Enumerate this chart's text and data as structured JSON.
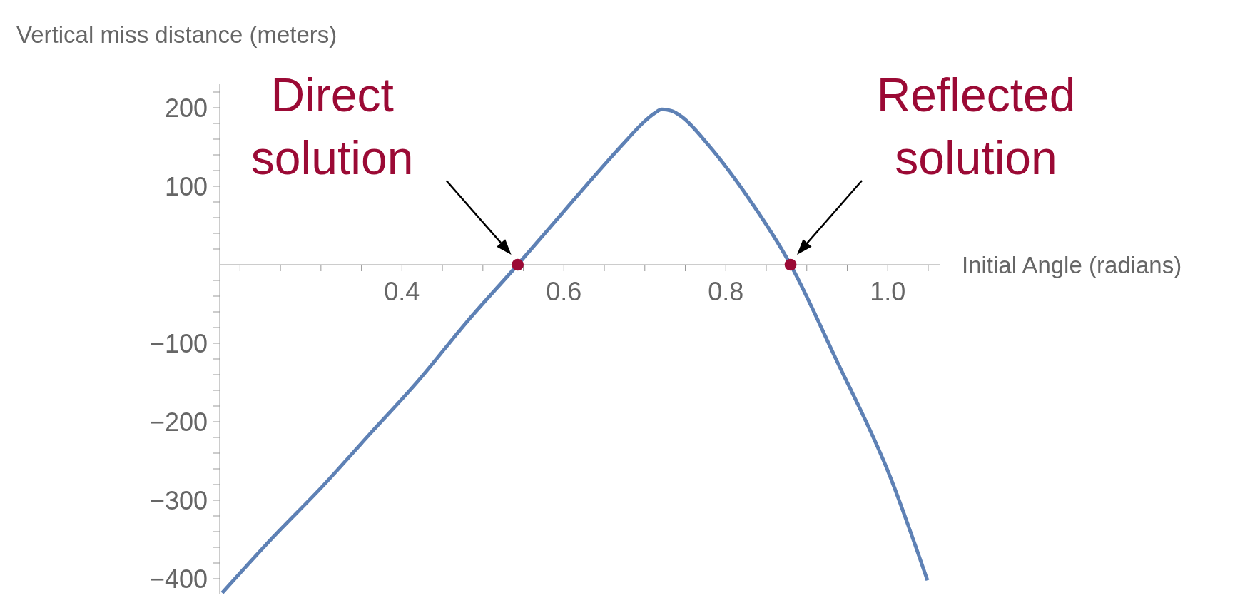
{
  "chart_data": {
    "type": "line",
    "xlabel": "Initial Angle (radians)",
    "ylabel": "Vertical miss distance (meters)",
    "xlim": [
      0.175,
      1.065
    ],
    "xticks": [
      {
        "value": 0.2,
        "label": null
      },
      {
        "value": 0.25,
        "label": null
      },
      {
        "value": 0.3,
        "label": null
      },
      {
        "value": 0.35,
        "label": null
      },
      0.4,
      {
        "value": 0.45,
        "label": null
      },
      {
        "value": 0.5,
        "label": null
      },
      {
        "value": 0.55,
        "label": null
      },
      0.6,
      {
        "value": 0.65,
        "label": null
      },
      {
        "value": 0.7,
        "label": null
      },
      {
        "value": 0.75,
        "label": null
      },
      0.8,
      {
        "value": 0.85,
        "label": null
      },
      {
        "value": 0.9,
        "label": null
      },
      {
        "value": 0.95,
        "label": null
      },
      {
        "value": 1.0,
        "label": "1.0"
      },
      {
        "value": 1.05,
        "label": null
      }
    ],
    "ylim": [
      -420,
      230
    ],
    "yticks": [
      {
        "value": 220,
        "label": null
      },
      {
        "value": 200,
        "label": "200"
      },
      {
        "value": 180,
        "label": null
      },
      {
        "value": 160,
        "label": null
      },
      {
        "value": 140,
        "label": null
      },
      {
        "value": 120,
        "label": null
      },
      {
        "value": 100,
        "label": "100"
      },
      {
        "value": 80,
        "label": null
      },
      {
        "value": 60,
        "label": null
      },
      {
        "value": 40,
        "label": null
      },
      {
        "value": 20,
        "label": null
      },
      {
        "value": -20,
        "label": null
      },
      {
        "value": -40,
        "label": null
      },
      {
        "value": -60,
        "label": null
      },
      {
        "value": -80,
        "label": null
      },
      {
        "value": -100,
        "label": "−100"
      },
      {
        "value": -120,
        "label": null
      },
      {
        "value": -140,
        "label": null
      },
      {
        "value": -160,
        "label": null
      },
      {
        "value": -180,
        "label": null
      },
      {
        "value": -200,
        "label": "−200"
      },
      {
        "value": -220,
        "label": null
      },
      {
        "value": -240,
        "label": null
      },
      {
        "value": -260,
        "label": null
      },
      {
        "value": -280,
        "label": null
      },
      {
        "value": -300,
        "label": "−300"
      },
      {
        "value": -320,
        "label": null
      },
      {
        "value": -340,
        "label": null
      },
      {
        "value": -360,
        "label": null
      },
      {
        "value": -380,
        "label": null
      },
      {
        "value": -400,
        "label": "−400"
      }
    ],
    "grid": false,
    "legend": false,
    "series": [
      {
        "type": "line",
        "color": "#5e81b5",
        "x": [
          0.178,
          0.24,
          0.303,
          0.36,
          0.42,
          0.48,
          0.543,
          0.6,
          0.654,
          0.676,
          0.697,
          0.712,
          0.721,
          0.733,
          0.745,
          0.779,
          0.826,
          0.88,
          0.936,
          1.003,
          1.049
        ],
        "values": [
          -418,
          -348,
          -281,
          -216,
          -148,
          -73,
          0,
          68,
          132,
          157,
          180,
          193,
          198,
          196,
          189,
          152,
          88,
          0,
          -120,
          -270,
          -402
        ]
      },
      {
        "type": "scatter",
        "color": "#9b0a35",
        "marker": "circle",
        "x": [
          0.543,
          0.88
        ],
        "values": [
          0,
          0
        ]
      }
    ],
    "annotations": [
      {
        "text": "Direct solution",
        "x": 0.543,
        "y": 0
      },
      {
        "text": "Reflected solution",
        "x": 0.88,
        "y": 0
      }
    ]
  }
}
